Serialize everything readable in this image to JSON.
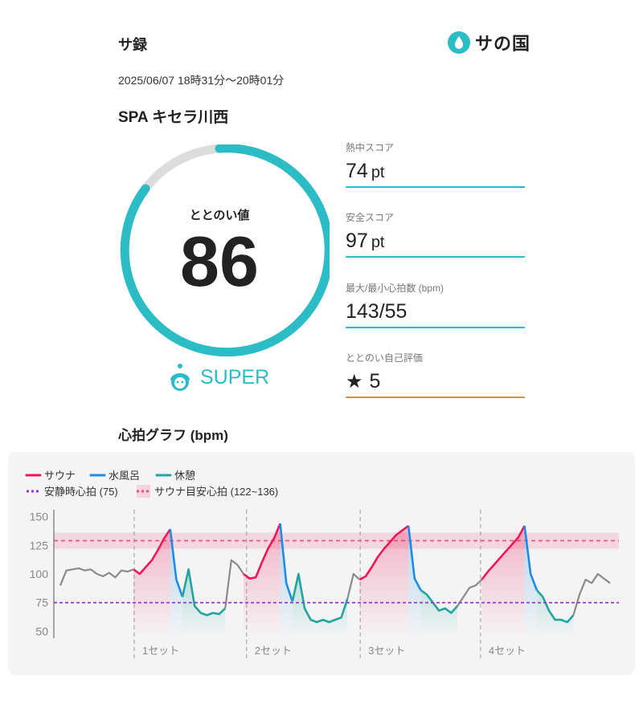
{
  "header": {
    "title": "サ録",
    "logo": "サの国"
  },
  "visit": {
    "datetime": "2025/06/07 18時31分〜20時01分",
    "facility": "SPA キセラ川西"
  },
  "score": {
    "label": "ととのい値",
    "value": 86,
    "rank": "SUPER"
  },
  "metrics": [
    {
      "label": "熱中スコア",
      "value": 74,
      "unit": "pt"
    },
    {
      "label": "安全スコア",
      "value": 97,
      "unit": "pt"
    },
    {
      "label": "最大/最小心拍数 (bpm)",
      "value": "143/55"
    },
    {
      "label": "ととのい自己評価",
      "value": 5
    }
  ],
  "chart_data": {
    "type": "line",
    "title": "心拍グラフ (bpm)",
    "ylim": [
      44,
      156
    ],
    "yticks": [
      50,
      75,
      100,
      125,
      150
    ],
    "series": [
      {
        "name": "サウナ",
        "color": "#ef1659",
        "values": [
          null,
          null,
          null,
          null,
          null,
          null,
          null,
          null,
          null,
          null,
          null,
          null,
          104,
          100,
          106,
          112,
          121,
          131,
          139,
          null,
          null,
          null,
          null,
          null,
          null,
          null,
          null,
          null,
          null,
          null,
          100,
          96,
          97,
          110,
          122,
          131,
          144,
          null,
          null,
          null,
          null,
          null,
          null,
          null,
          null,
          null,
          null,
          null,
          null,
          95,
          98,
          106,
          115,
          122,
          128,
          134,
          138,
          142,
          null,
          null,
          null,
          null,
          null,
          null,
          null,
          null,
          null,
          null,
          null,
          95,
          102,
          108,
          114,
          120,
          126,
          132,
          142,
          null,
          null,
          null,
          null,
          null,
          null,
          null,
          null,
          null,
          null,
          null,
          null,
          null,
          null
        ]
      },
      {
        "name": "水風呂",
        "color": "#1e8ce6",
        "values": [
          null,
          null,
          null,
          null,
          null,
          null,
          null,
          null,
          null,
          null,
          null,
          null,
          null,
          null,
          null,
          null,
          null,
          null,
          139,
          95,
          80,
          null,
          null,
          null,
          null,
          null,
          null,
          null,
          null,
          null,
          null,
          null,
          null,
          null,
          null,
          null,
          144,
          92,
          76,
          null,
          null,
          null,
          null,
          null,
          null,
          null,
          null,
          null,
          null,
          null,
          null,
          null,
          null,
          null,
          null,
          null,
          null,
          142,
          96,
          86,
          null,
          null,
          null,
          null,
          null,
          null,
          null,
          null,
          null,
          null,
          null,
          null,
          null,
          null,
          null,
          null,
          142,
          100,
          86,
          null,
          null,
          null,
          null,
          null,
          null,
          null,
          null,
          null,
          null,
          null,
          null,
          null
        ]
      },
      {
        "name": "休憩",
        "color": "#22a59f",
        "values": [
          null,
          null,
          null,
          null,
          null,
          null,
          null,
          null,
          null,
          null,
          null,
          null,
          null,
          null,
          null,
          null,
          null,
          null,
          null,
          null,
          80,
          104,
          72,
          66,
          64,
          66,
          65,
          70,
          null,
          null,
          null,
          null,
          null,
          null,
          null,
          null,
          null,
          null,
          76,
          100,
          70,
          60,
          58,
          60,
          58,
          60,
          62,
          78,
          null,
          null,
          null,
          null,
          null,
          null,
          null,
          null,
          null,
          null,
          null,
          86,
          82,
          75,
          68,
          70,
          66,
          72,
          null,
          null,
          null,
          null,
          null,
          null,
          null,
          null,
          null,
          null,
          null,
          null,
          86,
          80,
          68,
          60,
          60,
          58,
          64,
          null,
          null,
          null,
          null,
          null,
          null
        ]
      },
      {
        "color": "#8a8a8a",
        "values": [
          90,
          103,
          104,
          105,
          103,
          104,
          100,
          98,
          101,
          97,
          103,
          102,
          104,
          null,
          null,
          null,
          null,
          null,
          null,
          null,
          null,
          null,
          null,
          null,
          null,
          null,
          null,
          70,
          112,
          108,
          100,
          null,
          null,
          null,
          null,
          null,
          null,
          null,
          null,
          null,
          null,
          null,
          null,
          null,
          null,
          null,
          null,
          78,
          100,
          95,
          null,
          null,
          null,
          null,
          null,
          null,
          null,
          null,
          null,
          null,
          null,
          null,
          null,
          null,
          null,
          72,
          80,
          88,
          90,
          95,
          null,
          null,
          null,
          null,
          null,
          null,
          null,
          null,
          null,
          null,
          null,
          null,
          null,
          null,
          64,
          82,
          95,
          92,
          100,
          96,
          92
        ]
      }
    ],
    "reference_lines": [
      {
        "label": "安静時心拍 (75)",
        "value": 75,
        "color": "#9b34e0"
      }
    ],
    "reference_band": {
      "label": "サウナ目安心拍 (122~136)",
      "range": [
        122,
        136
      ],
      "color": "#f0507e"
    },
    "sets": [
      {
        "label": "1セット",
        "x": 12.1
      },
      {
        "label": "2セット",
        "x": 30.5
      },
      {
        "label": "3セット",
        "x": 49.1
      },
      {
        "label": "4セット",
        "x": 68.8
      }
    ]
  }
}
